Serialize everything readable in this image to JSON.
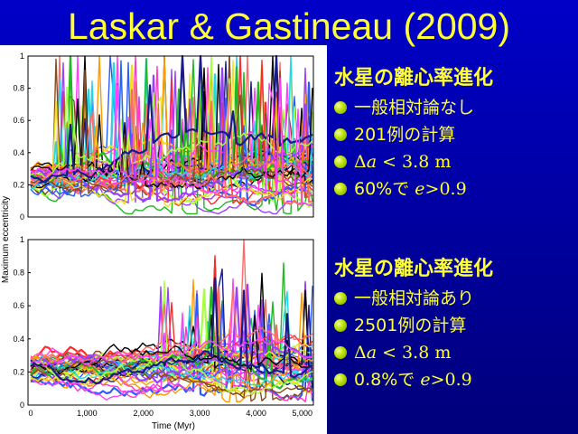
{
  "title": "Laskar & Gastineau (2009)",
  "figure": {
    "ylabel": "Maximum eccentricity",
    "xlabel": "Time (Myr)",
    "x_ticks": [
      "0",
      "1,000",
      "2,000",
      "3,000",
      "4,000",
      "5,000"
    ],
    "y_ticks": [
      "0",
      "0.2",
      "0.4",
      "0.6",
      "0.8",
      "1"
    ]
  },
  "panel1": {
    "heading": "水星の離心率進化",
    "items": [
      {
        "text": "一般相対論なし"
      },
      {
        "text": "201例の計算"
      },
      {
        "prefix": "Δ",
        "var": "a",
        "rest": " < 3.8 m"
      },
      {
        "text": "60%で ",
        "var": "e",
        "rest": ">0.9"
      }
    ]
  },
  "panel2": {
    "heading": "水星の離心率進化",
    "items": [
      {
        "text": "一般相対論あり"
      },
      {
        "text": "2501例の計算"
      },
      {
        "prefix": "Δ",
        "var": "a",
        "rest": " < 3.8 m"
      },
      {
        "text": "0.8%で ",
        "var": "e",
        "rest": ">0.9"
      }
    ]
  },
  "colors": {
    "background": "#0000b4",
    "accent_text": "#ffff33",
    "bullet": "#b8e000",
    "series_palette": [
      "#ff2a2a",
      "#2a5cff",
      "#22b822",
      "#ff9a00",
      "#ff39c8",
      "#20d8e8",
      "#f0e020",
      "#9a40ff",
      "#000000",
      "#8a4a1a",
      "#a8ff40",
      "#ff6a6a",
      "#1a1a8a",
      "#ff40ff"
    ]
  }
}
